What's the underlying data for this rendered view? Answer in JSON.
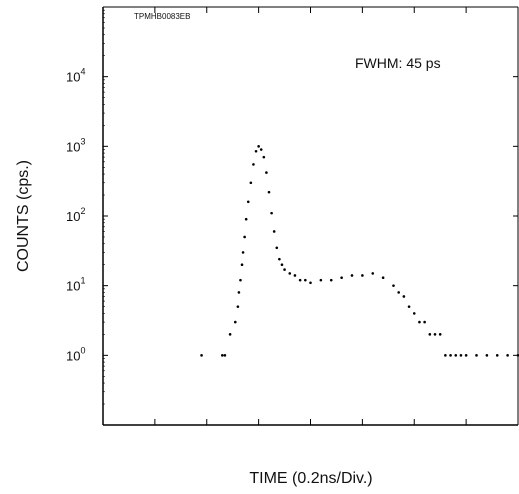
{
  "chart_data": {
    "type": "scatter",
    "title": "",
    "code_label": "TPMHB0083EB",
    "annotation": "FWHM: 45 ps",
    "xlabel": "TIME (0.2ns/Div.)",
    "ylabel": "COUNTS (cps.)",
    "y_scale": "log",
    "ylim": [
      0.1,
      100000
    ],
    "xlim": [
      0,
      8
    ],
    "x_unit": "divisions (0.2 ns each)",
    "y_ticks": [
      {
        "value": 1,
        "base": "10",
        "exp": "0"
      },
      {
        "value": 10,
        "base": "10",
        "exp": "1"
      },
      {
        "value": 100,
        "base": "10",
        "exp": "2"
      },
      {
        "value": 1000,
        "base": "10",
        "exp": "3"
      },
      {
        "value": 10000,
        "base": "10",
        "exp": "4"
      }
    ],
    "grid": false,
    "series": [
      {
        "marker": "dot",
        "color": "#000000",
        "x": [
          1.9,
          2.3,
          2.35,
          2.45,
          2.55,
          2.6,
          2.62,
          2.65,
          2.68,
          2.7,
          2.73,
          2.76,
          2.8,
          2.85,
          2.9,
          2.95,
          3.0,
          3.05,
          3.1,
          3.15,
          3.2,
          3.25,
          3.3,
          3.35,
          3.4,
          3.45,
          3.5,
          3.6,
          3.7,
          3.8,
          3.9,
          4.0,
          4.2,
          4.4,
          4.6,
          4.8,
          5.0,
          5.2,
          5.4,
          5.6,
          5.7,
          5.8,
          5.9,
          6.0,
          6.1,
          6.2,
          6.3,
          6.4,
          6.5,
          6.6,
          6.7,
          6.8,
          6.9,
          7.0,
          7.2,
          7.4,
          7.6,
          7.8,
          8.0
        ],
        "y": [
          1,
          1,
          1,
          2,
          3,
          5,
          8,
          12,
          20,
          30,
          50,
          90,
          160,
          300,
          550,
          850,
          1000,
          900,
          700,
          420,
          220,
          110,
          60,
          35,
          24,
          20,
          17,
          15,
          14,
          12,
          12,
          11,
          12,
          12,
          13,
          14,
          14,
          15,
          13,
          10,
          8,
          7,
          5,
          4,
          3,
          3,
          2,
          2,
          2,
          1,
          1,
          1,
          1,
          1,
          1,
          1,
          1,
          1,
          1
        ]
      }
    ]
  }
}
